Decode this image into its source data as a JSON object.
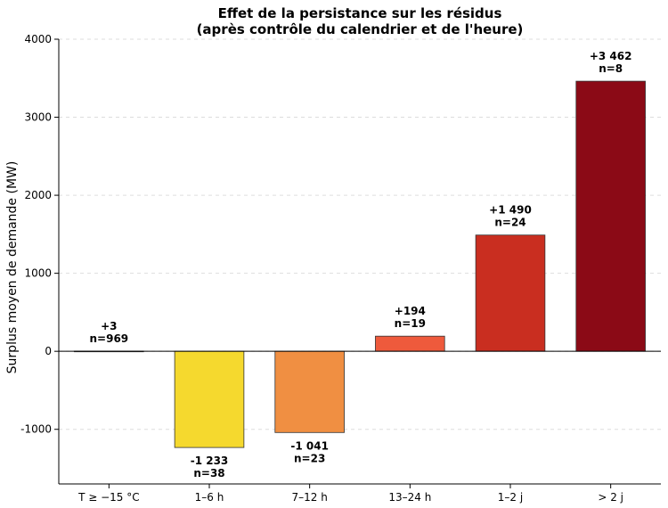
{
  "chart_data": {
    "type": "bar",
    "title_line1": "Effet de la persistance sur les résidus",
    "title_line2": "(après contrôle du calendrier et de l'heure)",
    "xlabel": "",
    "ylabel": "Surplus moyen de demande (MW)",
    "ylim": [
      -1700,
      4000
    ],
    "yticks": [
      -1000,
      0,
      1000,
      2000,
      3000,
      4000
    ],
    "ytick_labels": [
      "-1000",
      "0",
      "1000",
      "2000",
      "3000",
      "4000"
    ],
    "grid": "horizontal-dashed",
    "categories": [
      "T ≥ −15 °C",
      "1–6 h",
      "7–12 h",
      "13–24 h",
      "1–2 j",
      "> 2 j"
    ],
    "values": [
      3,
      -1233,
      -1041,
      194,
      1490,
      3462
    ],
    "value_labels": [
      "+3",
      "-1 233",
      "-1 041",
      "+194",
      "+1 490",
      "+3 462"
    ],
    "counts": [
      "n=969",
      "n=38",
      "n=23",
      "n=19",
      "n=24",
      "n=8"
    ],
    "colors": [
      "#8b0a16",
      "#f5d92e",
      "#f08f42",
      "#ee5a3c",
      "#c92e20",
      "#8b0a16"
    ]
  }
}
